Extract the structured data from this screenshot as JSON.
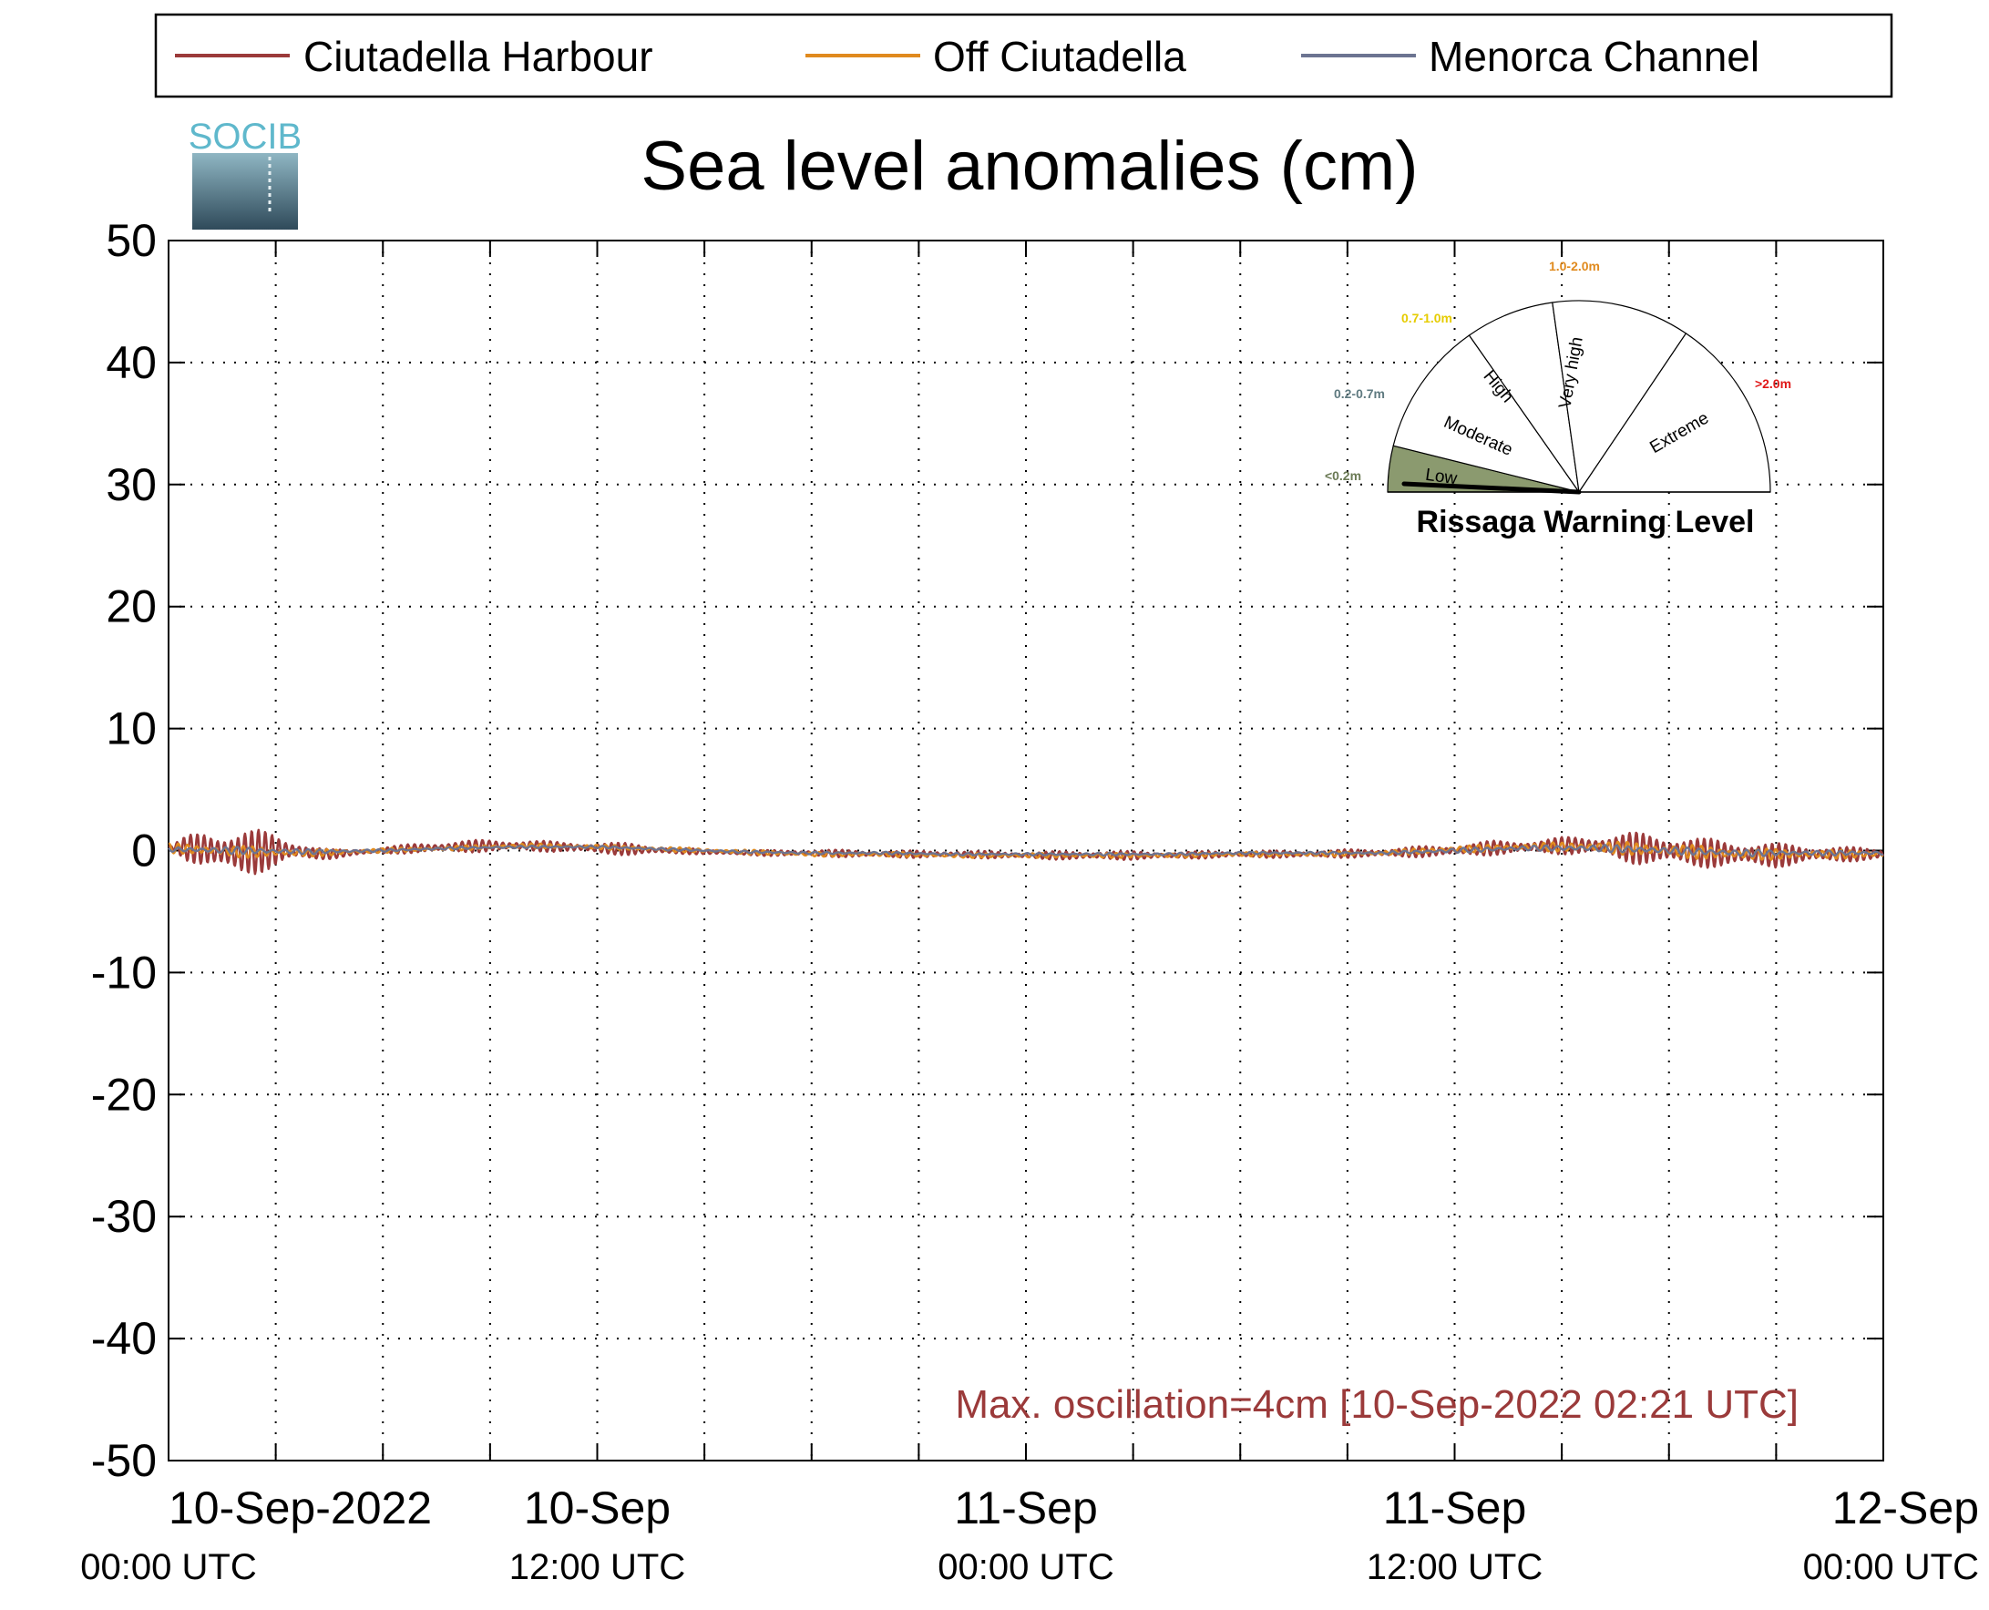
{
  "chart_data": {
    "type": "line",
    "title": "Sea level anomalies (cm)",
    "xlabel": "",
    "ylabel": "",
    "ylim": [
      -50,
      50
    ],
    "yticks": [
      50,
      40,
      30,
      20,
      10,
      0,
      -10,
      -20,
      -30,
      -40,
      -50
    ],
    "xlim": [
      "2022-09-10T00:00",
      "2022-09-12T00:00"
    ],
    "xtick_labels": [
      {
        "x": "2022-09-10T00:00",
        "line1": "10-Sep-2022",
        "line2": "00:00 UTC"
      },
      {
        "x": "2022-09-10T12:00",
        "line1": "10-Sep",
        "line2": "12:00 UTC"
      },
      {
        "x": "2022-09-11T00:00",
        "line1": "11-Sep",
        "line2": "00:00 UTC"
      },
      {
        "x": "2022-09-11T12:00",
        "line1": "11-Sep",
        "line2": "12:00 UTC"
      },
      {
        "x": "2022-09-12T00:00",
        "line1": "12-Sep",
        "line2": "00:00 UTC"
      }
    ],
    "minor_xtick_hours": 3,
    "grid": true,
    "legend_position": "top",
    "series": [
      {
        "name": "Ciutadella Harbour",
        "color": "#9b3a3a",
        "x_hours": [
          0,
          0.5,
          1,
          1.5,
          2,
          2.5,
          3,
          3.5,
          4,
          4.5,
          5,
          6,
          7,
          8,
          9,
          10,
          11,
          12,
          13,
          14,
          15,
          16,
          18,
          20,
          22,
          24,
          26,
          28,
          30,
          32,
          34,
          36,
          37,
          38,
          39,
          40,
          41,
          42,
          43,
          44,
          45,
          46,
          47,
          48
        ],
        "y": [
          0,
          1.0,
          1.6,
          2.0,
          2.0,
          1.8,
          1.5,
          1.0,
          0.6,
          0.4,
          0.3,
          0.3,
          0.4,
          0.5,
          0.5,
          0.5,
          0.4,
          0.5,
          0.5,
          0.3,
          0.2,
          0.2,
          0.3,
          0.3,
          0.3,
          0.3,
          0.4,
          0.3,
          0.3,
          0.3,
          0.4,
          0.5,
          0.6,
          0.6,
          0.7,
          0.9,
          1.3,
          1.4,
          1.2,
          1.2,
          1.0,
          0.8,
          0.6,
          0.5
        ],
        "offset": [
          0.3,
          0.2,
          0.1,
          -0.1,
          -0.2,
          -0.1,
          0,
          0,
          -0.2,
          -0.3,
          -0.2,
          0,
          0.2,
          0.3,
          0.4,
          0.4,
          0.3,
          0.2,
          0.1,
          0,
          -0.1,
          -0.2,
          -0.2,
          -0.3,
          -0.3,
          -0.4,
          -0.4,
          -0.4,
          -0.3,
          -0.3,
          -0.2,
          0,
          0.2,
          0.3,
          0.4,
          0.4,
          0.2,
          0,
          -0.2,
          -0.3,
          -0.4,
          -0.3,
          -0.3,
          -0.3
        ]
      },
      {
        "name": "Off Ciutadella",
        "color": "#e08a1e",
        "x_hours": [
          0,
          2,
          4,
          6,
          8,
          10,
          12,
          14,
          16,
          18,
          20,
          22,
          24,
          26,
          28,
          30,
          32,
          34,
          36,
          38,
          40,
          42,
          44,
          46,
          48
        ],
        "y": [
          0.4,
          0.5,
          0.3,
          0.2,
          0.2,
          0.2,
          0.2,
          0.2,
          0.2,
          0.2,
          0.2,
          0.2,
          0.2,
          0.2,
          0.2,
          0.2,
          0.2,
          0.2,
          0.3,
          0.3,
          0.5,
          0.6,
          0.5,
          0.4,
          0.3
        ],
        "offset": [
          0.2,
          -0.1,
          -0.2,
          0,
          0.2,
          0.4,
          0.3,
          0.1,
          -0.1,
          -0.3,
          -0.3,
          -0.4,
          -0.4,
          -0.4,
          -0.4,
          -0.3,
          -0.3,
          -0.2,
          0.1,
          0.3,
          0.3,
          0,
          -0.3,
          -0.3,
          -0.3
        ]
      },
      {
        "name": "Menorca Channel",
        "color": "#6c7491",
        "x_hours": [
          0,
          2,
          4,
          6,
          8,
          10,
          12,
          14,
          16,
          18,
          20,
          22,
          24,
          26,
          28,
          30,
          32,
          34,
          36,
          38,
          40,
          42,
          44,
          46,
          48
        ],
        "y": [
          0.2,
          0.3,
          0.2,
          0.1,
          0.1,
          0.1,
          0.1,
          0.1,
          0.1,
          0.1,
          0.1,
          0.1,
          0.1,
          0.1,
          0.1,
          0.1,
          0.1,
          0.1,
          0.2,
          0.2,
          0.3,
          0.3,
          0.3,
          0.2,
          0.2
        ],
        "offset": [
          0.1,
          0,
          -0.1,
          0,
          0.2,
          0.3,
          0.3,
          0.1,
          -0.1,
          -0.2,
          -0.2,
          -0.3,
          -0.3,
          -0.3,
          -0.3,
          -0.2,
          -0.2,
          -0.2,
          0,
          0.2,
          0.2,
          0,
          -0.2,
          -0.2,
          -0.2
        ]
      }
    ],
    "annotation": "Max. oscillation=4cm [10-Sep-2022 02:21 UTC]"
  },
  "logo": {
    "text": "SOCIB"
  },
  "gauge": {
    "title": "Rissaga Warning Level",
    "needle_category": "Low",
    "categories": [
      {
        "label": "Low",
        "range": "<0.2m",
        "range_color": "#6b7a55",
        "fill": "#8b9a6f"
      },
      {
        "label": "Moderate",
        "range": "0.2-0.7m",
        "range_color": "#5f7a80",
        "fill": "#ffffff"
      },
      {
        "label": "High",
        "range": "0.7-1.0m",
        "range_color": "#e6cc00",
        "fill": "#ffffff"
      },
      {
        "label": "Very high",
        "range": "1.0-2.0m",
        "range_color": "#e08a1e",
        "fill": "#ffffff"
      },
      {
        "label": "Extreme",
        "range": ">2.0m",
        "range_color": "#e01818",
        "fill": "#ffffff"
      }
    ]
  }
}
